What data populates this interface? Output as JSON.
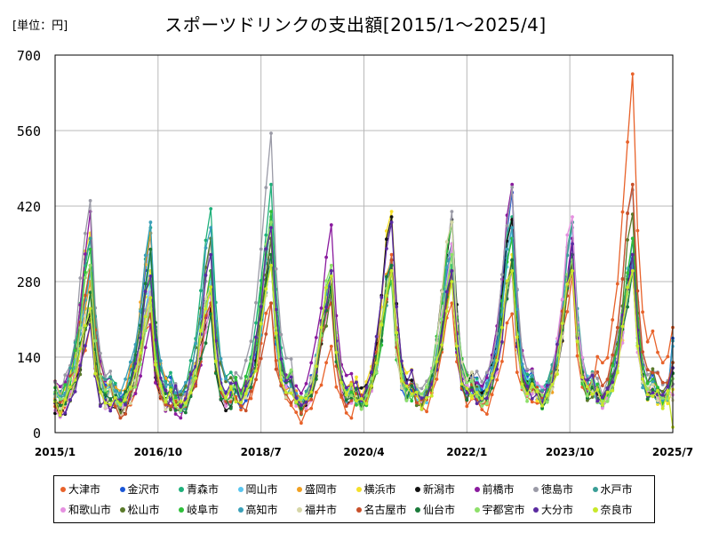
{
  "unit_label": "[単位：円]",
  "chart_data": {
    "type": "line",
    "title": "スポーツドリンクの支出額[2015/1～2025/4]",
    "xlabel": "",
    "ylabel": "",
    "ylim": [
      0,
      700
    ],
    "grid": true,
    "legend_position": "bottom",
    "y_ticks": [
      "0",
      "140",
      "280",
      "420",
      "560",
      "700"
    ],
    "x_ticks": [
      "2015/1",
      "2016/10",
      "2018/7",
      "2020/4",
      "2022/1",
      "2023/10",
      "2025/7"
    ],
    "x_range": [
      "2015/1",
      "2025/7"
    ],
    "months": 124,
    "series": [
      {
        "name": "大津市",
        "color": "#e8622a"
      },
      {
        "name": "金沢市",
        "color": "#1a56d6"
      },
      {
        "name": "青森市",
        "color": "#1fb07a"
      },
      {
        "name": "岡山市",
        "color": "#58c6f0"
      },
      {
        "name": "盛岡市",
        "color": "#f0a020"
      },
      {
        "name": "横浜市",
        "color": "#f5e02a"
      },
      {
        "name": "新潟市",
        "color": "#111111"
      },
      {
        "name": "前橋市",
        "color": "#8a1a9e"
      },
      {
        "name": "徳島市",
        "color": "#9a9aa6"
      },
      {
        "name": "水戸市",
        "color": "#3a9e96"
      },
      {
        "name": "和歌山市",
        "color": "#e590e0"
      },
      {
        "name": "松山市",
        "color": "#5a7a2a"
      },
      {
        "name": "岐阜市",
        "color": "#2ec03a"
      },
      {
        "name": "高知市",
        "color": "#3aa0b8"
      },
      {
        "name": "福井市",
        "color": "#d6d6a8"
      },
      {
        "name": "名古屋市",
        "color": "#c8502a"
      },
      {
        "name": "仙台市",
        "color": "#1a7a3a"
      },
      {
        "name": "宇都宮市",
        "color": "#8ee06a"
      },
      {
        "name": "大分市",
        "color": "#5a2aa0"
      },
      {
        "name": "奈良市",
        "color": "#c8e82a"
      }
    ],
    "peaks": [
      {
        "year": 2015,
        "values": [
          200,
          360,
          360,
          300,
          280,
          370,
          220,
          410,
          430,
          360,
          230,
          210,
          340,
          300,
          250,
          310,
          260,
          310,
          200,
          230
        ]
      },
      {
        "year": 2016,
        "values": [
          200,
          370,
          380,
          280,
          370,
          300,
          220,
          200,
          260,
          330,
          260,
          220,
          280,
          390,
          230,
          220,
          340,
          240,
          290,
          250
        ]
      },
      {
        "year": 2017,
        "values": [
          230,
          300,
          415,
          280,
          300,
          260,
          230,
          220,
          360,
          260,
          250,
          360,
          300,
          380,
          270,
          240,
          220,
          270,
          330,
          270
        ]
      },
      {
        "year": 2018,
        "values": [
          240,
          320,
          460,
          380,
          330,
          380,
          360,
          390,
          555,
          400,
          380,
          360,
          410,
          320,
          330,
          240,
          330,
          390,
          380,
          310
        ]
      },
      {
        "year": 2019,
        "values": [
          160,
          300,
          300,
          280,
          300,
          280,
          280,
          385,
          300,
          290,
          250,
          260,
          300,
          300,
          290,
          240,
          270,
          310,
          300,
          290
        ]
      },
      {
        "year": 2020,
        "values": [
          330,
          300,
          320,
          310,
          320,
          410,
          400,
          310,
          300,
          300,
          300,
          300,
          280,
          320,
          300,
          320,
          310,
          300,
          390,
          300
        ]
      },
      {
        "year": 2021,
        "values": [
          240,
          350,
          310,
          300,
          300,
          300,
          395,
          300,
          410,
          350,
          350,
          280,
          390,
          330,
          390,
          300,
          300,
          330,
          300,
          280
        ]
      },
      {
        "year": 2022,
        "values": [
          220,
          445,
          400,
          380,
          300,
          330,
          395,
          460,
          455,
          360,
          300,
          320,
          360,
          380,
          300,
          320,
          320,
          300,
          300,
          300
        ]
      },
      {
        "year": 2023,
        "values": [
          290,
          320,
          390,
          380,
          300,
          330,
          300,
          360,
          380,
          390,
          400,
          310,
          320,
          330,
          300,
          330,
          330,
          320,
          350,
          300
        ]
      },
      {
        "year": 2024,
        "values": [
          665,
          360,
          310,
          330,
          320,
          300,
          330,
          320,
          450,
          320,
          300,
          405,
          360,
          310,
          300,
          460,
          300,
          300,
          330,
          300
        ]
      }
    ],
    "last_month_values": [
      195,
      175,
      120,
      160,
      110,
      80,
      110,
      90,
      90,
      130,
      70,
      110,
      130,
      170,
      60,
      130,
      110,
      100,
      120,
      10
    ]
  }
}
